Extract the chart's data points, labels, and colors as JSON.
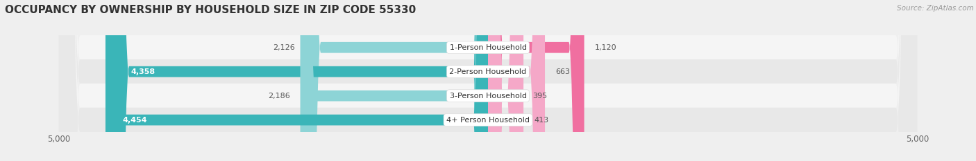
{
  "title": "OCCUPANCY BY OWNERSHIP BY HOUSEHOLD SIZE IN ZIP CODE 55330",
  "source": "Source: ZipAtlas.com",
  "categories": [
    "1-Person Household",
    "2-Person Household",
    "3-Person Household",
    "4+ Person Household"
  ],
  "owner_values": [
    2126,
    4358,
    2186,
    4454
  ],
  "renter_values": [
    1120,
    663,
    395,
    413
  ],
  "owner_color_dark": "#3ab5b8",
  "owner_color_light": "#8dd4d6",
  "renter_color_dark": "#f06fa0",
  "renter_color_light": "#f5a8c8",
  "row_bg_light": "#f5f5f5",
  "row_bg_dark": "#e8e8e8",
  "axis_max": 5000,
  "bg_color": "#efefef",
  "title_fontsize": 11,
  "label_fontsize": 8,
  "value_fontsize": 8,
  "tick_fontsize": 8.5,
  "legend_fontsize": 8,
  "source_fontsize": 7.5,
  "bar_height": 0.6
}
